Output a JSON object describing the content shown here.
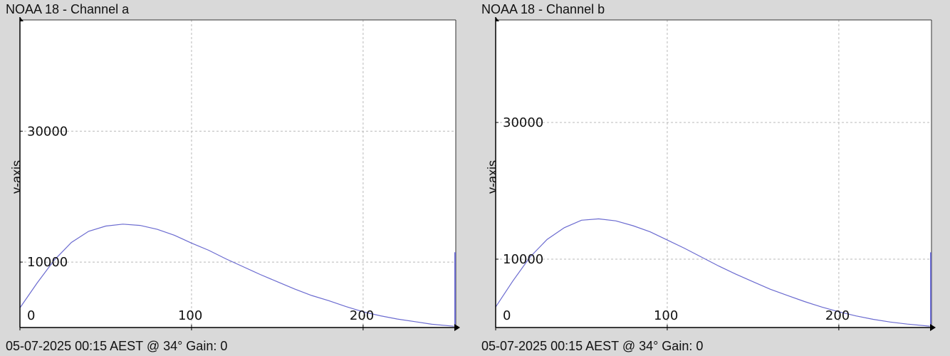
{
  "chart_data": [
    {
      "type": "line",
      "title": "NOAA 18 - Channel a",
      "ylabel": "y-axis",
      "footer": "05-07-2025 00:15 AEST @ 34° Gain: 0",
      "xlim": [
        0,
        254
      ],
      "ylim": [
        0,
        47000
      ],
      "grid": true,
      "x_ticks": [
        0,
        100,
        200
      ],
      "y_ticks": [
        10000,
        30000
      ],
      "series": [
        {
          "color": "#6b6bd0",
          "x": [
            0,
            10,
            20,
            30,
            40,
            50,
            60,
            70,
            80,
            90,
            100,
            110,
            120,
            130,
            140,
            150,
            160,
            170,
            180,
            190,
            200,
            210,
            220,
            230,
            240,
            253
          ],
          "y": [
            3000,
            6800,
            10300,
            13000,
            14700,
            15500,
            15800,
            15600,
            15000,
            14100,
            12900,
            11800,
            10500,
            9300,
            8100,
            7000,
            5900,
            4900,
            4100,
            3200,
            2400,
            1800,
            1300,
            900,
            500,
            200
          ]
        }
      ],
      "end_spike": {
        "x": 254,
        "y": 11500
      }
    },
    {
      "type": "line",
      "title": "NOAA 18 - Channel b",
      "ylabel": "y-axis",
      "footer": "05-07-2025 00:15 AEST @ 34° Gain: 0",
      "xlim": [
        0,
        254
      ],
      "ylim": [
        0,
        45000
      ],
      "grid": true,
      "x_ticks": [
        0,
        100,
        200
      ],
      "y_ticks": [
        10000,
        30000
      ],
      "series": [
        {
          "color": "#6b6bd0",
          "x": [
            0,
            10,
            20,
            30,
            40,
            50,
            60,
            70,
            80,
            90,
            100,
            110,
            120,
            130,
            140,
            150,
            160,
            170,
            180,
            190,
            200,
            210,
            220,
            230,
            240,
            253
          ],
          "y": [
            3000,
            6800,
            10300,
            12900,
            14600,
            15700,
            15900,
            15600,
            14900,
            14000,
            12800,
            11600,
            10300,
            9000,
            7800,
            6700,
            5600,
            4700,
            3800,
            3000,
            2300,
            1700,
            1200,
            800,
            500,
            200
          ]
        }
      ],
      "end_spike": {
        "x": 254,
        "y": 11000
      }
    }
  ]
}
